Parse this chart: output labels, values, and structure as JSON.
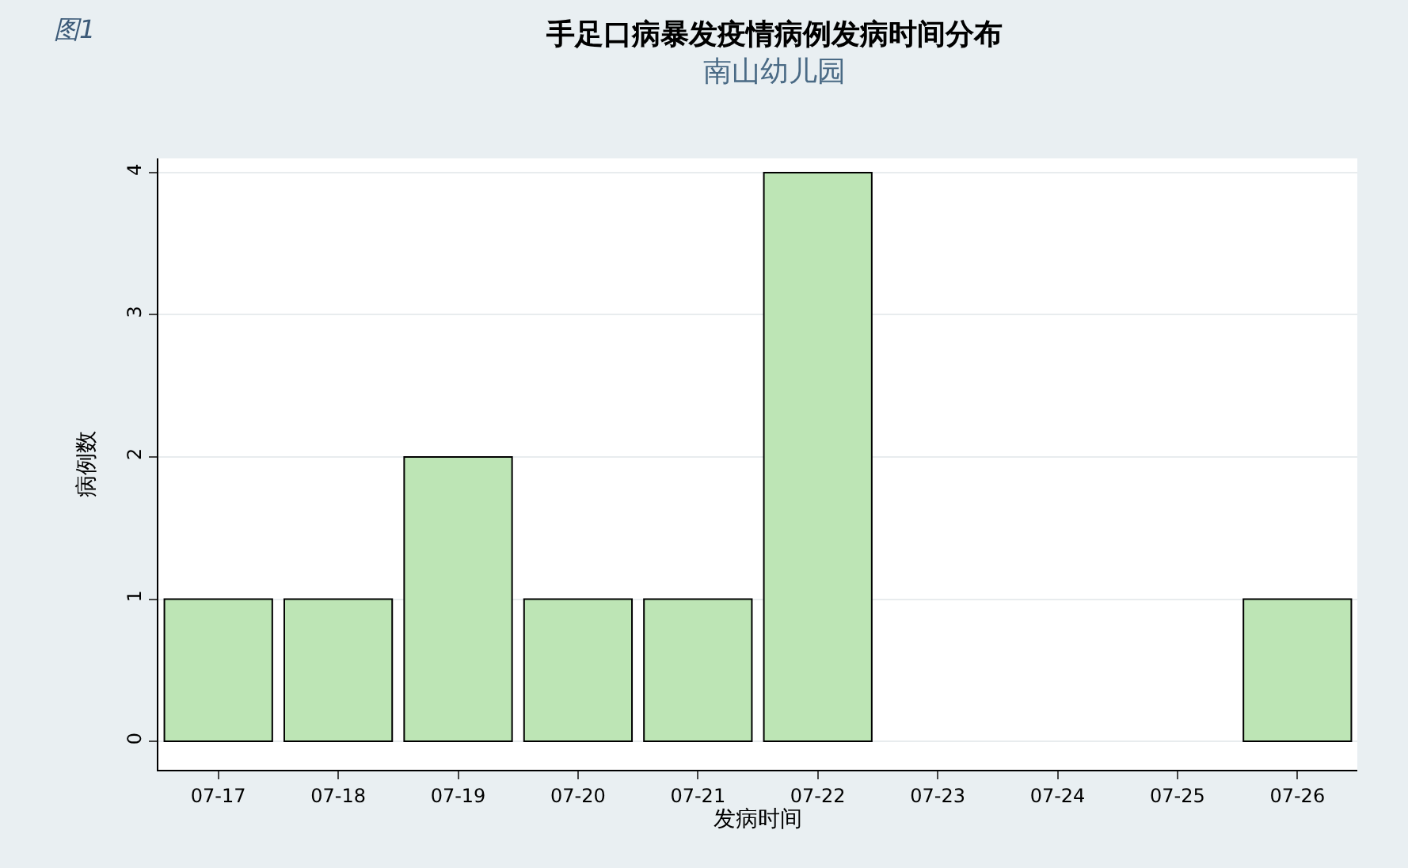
{
  "chart_data": {
    "type": "bar",
    "title": "手足口病暴发疫情病例发病时间分布",
    "subtitle": "南山幼儿园",
    "xlabel": "发病时间",
    "ylabel": "病例数",
    "annotations": [
      "图1"
    ],
    "categories": [
      "07-17",
      "07-18",
      "07-19",
      "07-20",
      "07-21",
      "07-22",
      "07-23",
      "07-24",
      "07-25",
      "07-26"
    ],
    "values": [
      1,
      1,
      2,
      1,
      1,
      4,
      0,
      0,
      0,
      1
    ],
    "color": "#bde5b5",
    "ylim": [
      -0.2,
      4.1
    ],
    "yticks": [
      0,
      1,
      2,
      3,
      4
    ],
    "grid": "y"
  }
}
